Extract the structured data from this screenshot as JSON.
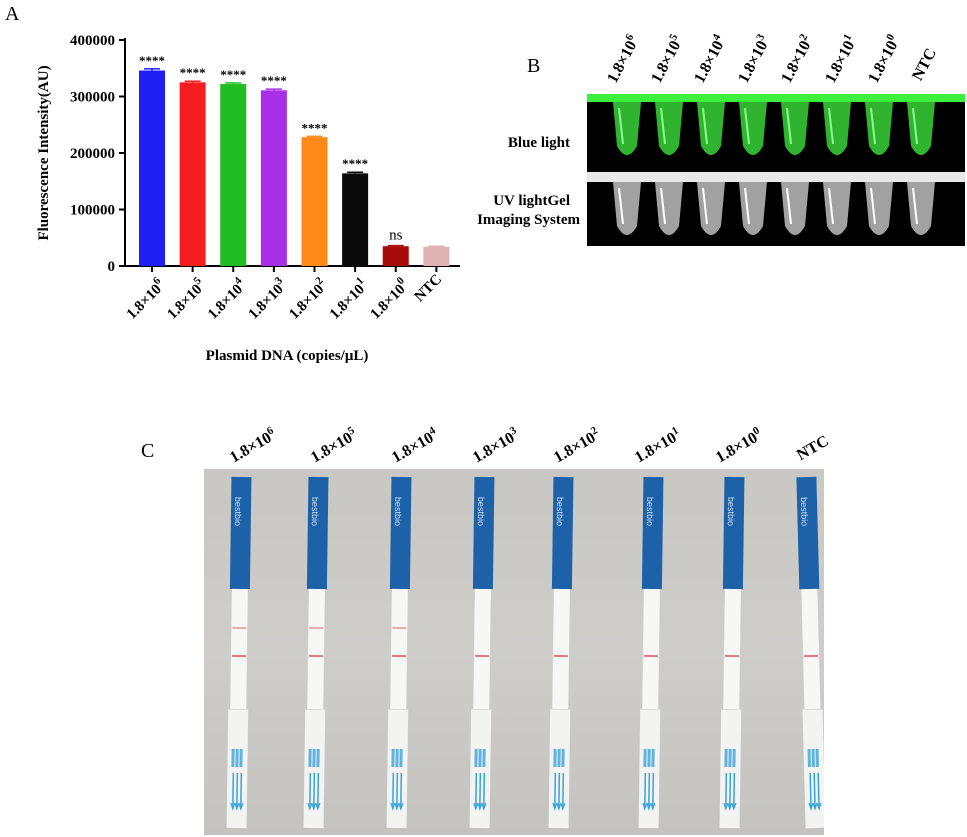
{
  "panels": {
    "a": "A",
    "b": "B",
    "c": "C"
  },
  "chart_data": {
    "type": "bar",
    "ylabel": "Fluorescence Intensity(AU)",
    "xlabel": "Plasmid DNA (copies/μL)",
    "ylim": [
      0,
      400000
    ],
    "yticks": [
      0,
      100000,
      200000,
      300000,
      400000
    ],
    "ytick_labels": [
      "0",
      "100000",
      "200000",
      "300000",
      "400000"
    ],
    "categories": [
      {
        "base": "1.8×10",
        "exp": "6"
      },
      {
        "base": "1.8×10",
        "exp": "5"
      },
      {
        "base": "1.8×10",
        "exp": "4"
      },
      {
        "base": "1.8×10",
        "exp": "3"
      },
      {
        "base": "1.8×10",
        "exp": "2"
      },
      {
        "base": "1.8×10",
        "exp": "1"
      },
      {
        "base": "1.8×10",
        "exp": "0"
      },
      {
        "base": "NTC",
        "exp": ""
      }
    ],
    "values": [
      346000,
      325000,
      322000,
      311000,
      228000,
      164000,
      35000,
      34000
    ],
    "errors": [
      3000,
      2000,
      2000,
      2000,
      1500,
      2000,
      1000,
      1000
    ],
    "significance": [
      "****",
      "****",
      "****",
      "****",
      "****",
      "****",
      "ns",
      ""
    ],
    "colors": [
      "#1f1ff5",
      "#f51d1d",
      "#1fbd22",
      "#a82fe8",
      "#ff8a1a",
      "#0a0a0a",
      "#a80a0a",
      "#e0b2b2"
    ]
  },
  "panel_b": {
    "lane_labels": [
      {
        "base": "1.8×10",
        "exp": "6"
      },
      {
        "base": "1.8×10",
        "exp": "5"
      },
      {
        "base": "1.8×10",
        "exp": "4"
      },
      {
        "base": "1.8×10",
        "exp": "3"
      },
      {
        "base": "1.8×10",
        "exp": "2"
      },
      {
        "base": "1.8×10",
        "exp": "1"
      },
      {
        "base": "1.8×10",
        "exp": "0"
      },
      {
        "base": "NTC",
        "exp": ""
      }
    ],
    "row_label_blue": "Blue light",
    "row_label_uv_1": "UV lightGel",
    "row_label_uv_2": "Imaging System"
  },
  "panel_c": {
    "lane_labels": [
      {
        "base": "1.8×10",
        "exp": "6"
      },
      {
        "base": "1.8×10",
        "exp": "5"
      },
      {
        "base": "1.8×10",
        "exp": "4"
      },
      {
        "base": "1.8×10",
        "exp": "3"
      },
      {
        "base": "1.8×10",
        "exp": "2"
      },
      {
        "base": "1.8×10",
        "exp": "1"
      },
      {
        "base": "1.8×10",
        "exp": "0"
      },
      {
        "base": "NTC",
        "exp": ""
      }
    ],
    "strip_brand": "bestbio"
  }
}
